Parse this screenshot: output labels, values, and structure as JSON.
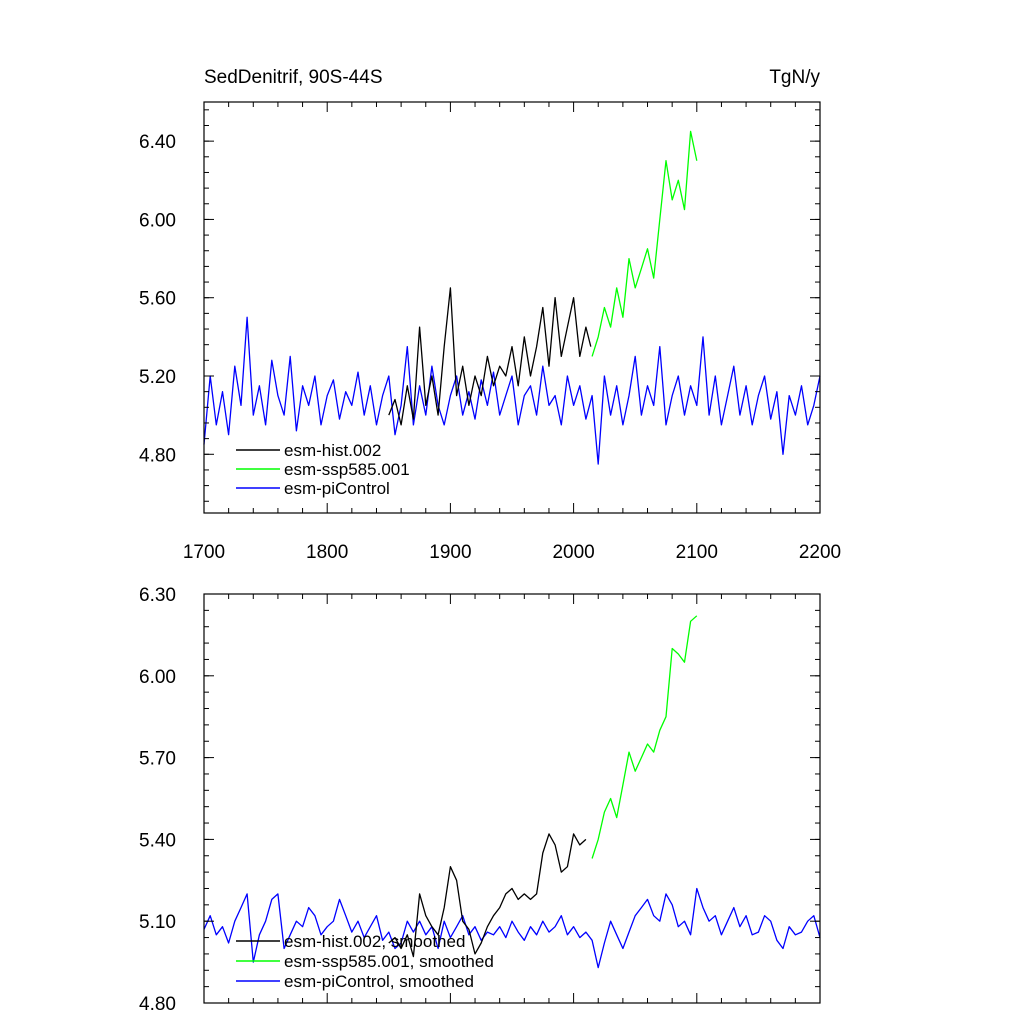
{
  "chart_data": [
    {
      "type": "line",
      "title_left": "SedDenitrif, 90S-44S",
      "title_right": "TgN/y",
      "xlim": [
        1700,
        2200
      ],
      "ylim": [
        4.5,
        6.6
      ],
      "x_ticks": [
        1700,
        1800,
        1900,
        2000,
        2100,
        2200
      ],
      "x_tick_labels": [
        "1700",
        "1800",
        "1900",
        "2000",
        "2100",
        "2200"
      ],
      "y_ticks": [
        4.8,
        5.2,
        5.6,
        6.0,
        6.4
      ],
      "y_tick_labels": [
        "4.80",
        "5.20",
        "5.60",
        "6.00",
        "6.40"
      ],
      "legend_position": "bottom-left",
      "series": [
        {
          "name": "esm-piControl",
          "color": "#0000ff",
          "x": [
            1700,
            1705,
            1710,
            1715,
            1720,
            1725,
            1730,
            1735,
            1740,
            1745,
            1750,
            1755,
            1760,
            1765,
            1770,
            1775,
            1780,
            1785,
            1790,
            1795,
            1800,
            1805,
            1810,
            1815,
            1820,
            1825,
            1830,
            1835,
            1840,
            1845,
            1850,
            1855,
            1860,
            1865,
            1870,
            1875,
            1880,
            1885,
            1890,
            1895,
            1900,
            1905,
            1910,
            1915,
            1920,
            1925,
            1930,
            1935,
            1940,
            1945,
            1950,
            1955,
            1960,
            1965,
            1970,
            1975,
            1980,
            1985,
            1990,
            1995,
            2000,
            2005,
            2010,
            2015,
            2020,
            2025,
            2030,
            2035,
            2040,
            2045,
            2050,
            2055,
            2060,
            2065,
            2070,
            2075,
            2080,
            2085,
            2090,
            2095,
            2100,
            2105,
            2110,
            2115,
            2120,
            2125,
            2130,
            2135,
            2140,
            2145,
            2150,
            2155,
            2160,
            2165,
            2170,
            2175,
            2180,
            2185,
            2190,
            2195,
            2200
          ],
          "values": [
            4.85,
            5.2,
            4.95,
            5.12,
            4.9,
            5.25,
            5.05,
            5.5,
            5.0,
            5.15,
            4.95,
            5.28,
            5.1,
            5.0,
            5.3,
            4.92,
            5.15,
            5.05,
            5.2,
            4.95,
            5.1,
            5.18,
            4.98,
            5.12,
            5.05,
            5.22,
            5.0,
            5.15,
            4.95,
            5.1,
            5.2,
            4.9,
            5.05,
            5.35,
            4.95,
            5.15,
            5.0,
            5.25,
            5.05,
            4.95,
            5.1,
            5.2,
            5.0,
            5.12,
            4.98,
            5.18,
            5.05,
            5.22,
            5.0,
            5.1,
            5.2,
            4.95,
            5.1,
            5.15,
            5.0,
            5.25,
            5.05,
            5.1,
            4.95,
            5.2,
            5.05,
            5.15,
            4.98,
            5.1,
            4.75,
            5.2,
            5.0,
            5.15,
            4.95,
            5.1,
            5.3,
            5.0,
            5.15,
            5.05,
            5.35,
            4.95,
            5.1,
            5.2,
            5.0,
            5.15,
            5.05,
            5.4,
            5.0,
            5.2,
            4.95,
            5.1,
            5.25,
            5.0,
            5.15,
            4.95,
            5.1,
            5.2,
            4.98,
            5.12,
            4.8,
            5.1,
            5.0,
            5.15,
            4.95,
            5.05,
            5.2
          ]
        },
        {
          "name": "esm-hist.002",
          "color": "#000000",
          "x": [
            1850,
            1855,
            1860,
            1865,
            1870,
            1875,
            1880,
            1885,
            1890,
            1895,
            1900,
            1905,
            1910,
            1915,
            1920,
            1925,
            1930,
            1935,
            1940,
            1945,
            1950,
            1955,
            1960,
            1965,
            1970,
            1975,
            1980,
            1985,
            1990,
            1995,
            2000,
            2005,
            2010,
            2014
          ],
          "values": [
            5.0,
            5.08,
            4.95,
            5.15,
            4.98,
            5.45,
            5.05,
            5.2,
            5.0,
            5.35,
            5.65,
            5.1,
            5.25,
            5.05,
            5.2,
            5.1,
            5.3,
            5.15,
            5.25,
            5.2,
            5.35,
            5.15,
            5.4,
            5.2,
            5.35,
            5.55,
            5.25,
            5.6,
            5.3,
            5.45,
            5.6,
            5.3,
            5.45,
            5.35
          ]
        },
        {
          "name": "esm-ssp585.001",
          "color": "#00ff00",
          "x": [
            2015,
            2020,
            2025,
            2030,
            2035,
            2040,
            2045,
            2050,
            2055,
            2060,
            2065,
            2070,
            2075,
            2080,
            2085,
            2090,
            2095,
            2100
          ],
          "values": [
            5.3,
            5.4,
            5.55,
            5.45,
            5.65,
            5.5,
            5.8,
            5.65,
            5.75,
            5.85,
            5.7,
            6.0,
            6.3,
            6.1,
            6.2,
            6.05,
            6.45,
            6.3
          ]
        }
      ]
    },
    {
      "type": "line",
      "xlim": [
        1700,
        2200
      ],
      "ylim": [
        4.8,
        6.3
      ],
      "x_ticks": [
        1700,
        1800,
        1900,
        2000,
        2100,
        2200
      ],
      "y_ticks": [
        4.8,
        5.1,
        5.4,
        5.7,
        6.0,
        6.3
      ],
      "y_tick_labels": [
        "4.80",
        "5.10",
        "5.40",
        "5.70",
        "6.00",
        "6.30"
      ],
      "legend_position": "bottom-left",
      "series": [
        {
          "name": "esm-piControl, smoothed",
          "color": "#0000ff",
          "x": [
            1700,
            1705,
            1710,
            1715,
            1720,
            1725,
            1730,
            1735,
            1740,
            1745,
            1750,
            1755,
            1760,
            1765,
            1770,
            1775,
            1780,
            1785,
            1790,
            1795,
            1800,
            1805,
            1810,
            1815,
            1820,
            1825,
            1830,
            1835,
            1840,
            1845,
            1850,
            1855,
            1860,
            1865,
            1870,
            1875,
            1880,
            1885,
            1890,
            1895,
            1900,
            1905,
            1910,
            1915,
            1920,
            1925,
            1930,
            1935,
            1940,
            1945,
            1950,
            1955,
            1960,
            1965,
            1970,
            1975,
            1980,
            1985,
            1990,
            1995,
            2000,
            2005,
            2010,
            2015,
            2020,
            2025,
            2030,
            2035,
            2040,
            2045,
            2050,
            2055,
            2060,
            2065,
            2070,
            2075,
            2080,
            2085,
            2090,
            2095,
            2100,
            2105,
            2110,
            2115,
            2120,
            2125,
            2130,
            2135,
            2140,
            2145,
            2150,
            2155,
            2160,
            2165,
            2170,
            2175,
            2180,
            2185,
            2190,
            2195,
            2200
          ],
          "values": [
            5.07,
            5.12,
            5.05,
            5.08,
            5.02,
            5.1,
            5.15,
            5.2,
            4.95,
            5.05,
            5.1,
            5.18,
            5.2,
            5.0,
            5.05,
            5.1,
            5.08,
            5.15,
            5.12,
            5.05,
            5.08,
            5.1,
            5.18,
            5.12,
            5.06,
            5.1,
            5.04,
            5.08,
            5.12,
            5.03,
            5.06,
            5.0,
            5.02,
            5.1,
            5.06,
            5.1,
            5.05,
            5.08,
            5.0,
            5.1,
            5.04,
            5.08,
            5.12,
            5.05,
            5.08,
            5.03,
            5.06,
            5.05,
            5.08,
            5.04,
            5.1,
            5.06,
            5.03,
            5.08,
            5.05,
            5.1,
            5.06,
            5.08,
            5.12,
            5.05,
            5.08,
            5.04,
            5.06,
            5.03,
            4.93,
            5.02,
            5.1,
            5.05,
            5.0,
            5.06,
            5.12,
            5.15,
            5.18,
            5.12,
            5.1,
            5.2,
            5.16,
            5.08,
            5.1,
            5.05,
            5.22,
            5.15,
            5.1,
            5.12,
            5.05,
            5.1,
            5.15,
            5.08,
            5.12,
            5.05,
            5.06,
            5.12,
            5.1,
            5.03,
            5.0,
            5.08,
            5.05,
            5.06,
            5.1,
            5.12,
            5.04
          ]
        },
        {
          "name": "esm-hist.002, smoothed",
          "color": "#000000",
          "x": [
            1850,
            1855,
            1860,
            1865,
            1870,
            1875,
            1880,
            1885,
            1890,
            1895,
            1900,
            1905,
            1910,
            1915,
            1920,
            1925,
            1930,
            1935,
            1940,
            1945,
            1950,
            1955,
            1960,
            1965,
            1970,
            1975,
            1980,
            1985,
            1990,
            1995,
            2000,
            2005,
            2010
          ],
          "values": [
            5.02,
            5.04,
            5.0,
            5.05,
            4.97,
            5.2,
            5.12,
            5.08,
            5.05,
            5.15,
            5.3,
            5.25,
            5.1,
            5.07,
            4.98,
            5.02,
            5.08,
            5.12,
            5.15,
            5.2,
            5.22,
            5.18,
            5.2,
            5.18,
            5.2,
            5.35,
            5.42,
            5.38,
            5.28,
            5.3,
            5.42,
            5.38,
            5.4
          ]
        },
        {
          "name": "esm-ssp585.001, smoothed",
          "color": "#00ff00",
          "x": [
            2015,
            2020,
            2025,
            2030,
            2035,
            2040,
            2045,
            2050,
            2055,
            2060,
            2065,
            2070,
            2075,
            2080,
            2085,
            2090,
            2095,
            2100
          ],
          "values": [
            5.33,
            5.4,
            5.5,
            5.55,
            5.48,
            5.6,
            5.72,
            5.65,
            5.7,
            5.75,
            5.72,
            5.8,
            5.85,
            6.1,
            6.08,
            6.05,
            6.2,
            6.22
          ]
        }
      ]
    }
  ]
}
